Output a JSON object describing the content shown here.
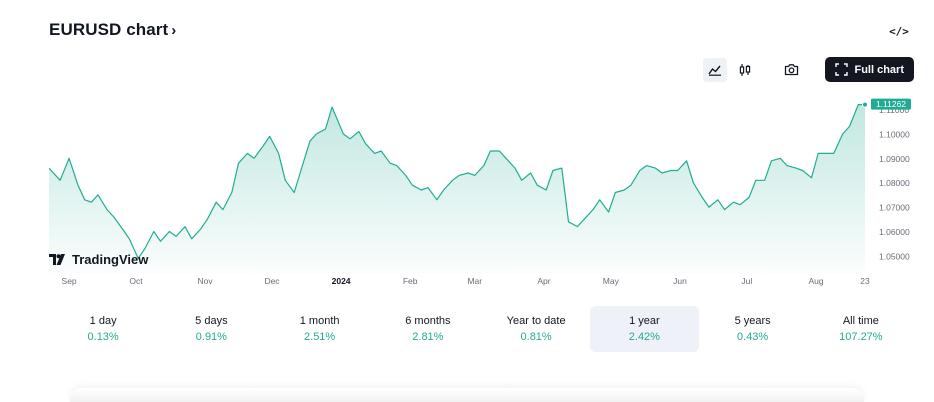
{
  "header": {
    "title": "EURUSD chart",
    "chevron": "›",
    "embed_icon": "</>"
  },
  "toolbar": {
    "icons": [
      "line-chart-icon",
      "candles-icon",
      "camera-icon"
    ],
    "full_chart_label": "Full chart"
  },
  "logo": {
    "text": "TradingView"
  },
  "colors": {
    "line": "#22ab94",
    "fill_top": "#d6efe8",
    "text": "#131722",
    "muted": "#6a6d78",
    "accent": "#22ab94"
  },
  "chart_data": {
    "type": "area",
    "symbol": "EURUSD",
    "last_price_label": "1.11262",
    "ylim": [
      1.043,
      1.118
    ],
    "yticks": [
      "1.11000",
      "1.10000",
      "1.09000",
      "1.08000",
      "1.07000",
      "1.06000",
      "1.05000"
    ],
    "ytick_values": [
      1.11,
      1.1,
      1.09,
      1.08,
      1.07,
      1.06,
      1.05
    ],
    "xlabels": [
      "Sep",
      "Oct",
      "Nov",
      "Dec",
      "2024",
      "Feb",
      "Mar",
      "Apr",
      "May",
      "Jun",
      "Jul",
      "Aug",
      "23"
    ],
    "xlabel_dates": [
      "2023-09-01",
      "2023-10-01",
      "2023-11-01",
      "2023-12-01",
      "2024-01-01",
      "2024-02-01",
      "2024-03-01",
      "2024-04-01",
      "2024-05-01",
      "2024-06-01",
      "2024-07-01",
      "2024-08-01",
      "2024-08-23"
    ],
    "bold_xlabel": "2024",
    "x_range": [
      "2023-08-23",
      "2024-08-23"
    ],
    "series": [
      {
        "x": [
          "2023-08-23",
          "2023-08-28",
          "2023-09-01",
          "2023-09-05",
          "2023-09-08",
          "2023-09-11",
          "2023-09-14",
          "2023-09-18",
          "2023-09-21",
          "2023-09-25",
          "2023-09-28",
          "2023-10-02",
          "2023-10-05",
          "2023-10-09",
          "2023-10-12",
          "2023-10-16",
          "2023-10-19",
          "2023-10-23",
          "2023-10-26",
          "2023-10-30",
          "2023-11-02",
          "2023-11-06",
          "2023-11-09",
          "2023-11-13",
          "2023-11-16",
          "2023-11-20",
          "2023-11-23",
          "2023-11-27",
          "2023-11-30",
          "2023-12-04",
          "2023-12-07",
          "2023-12-11",
          "2023-12-14",
          "2023-12-18",
          "2023-12-21",
          "2023-12-25",
          "2023-12-28",
          "2024-01-02",
          "2024-01-05",
          "2024-01-09",
          "2024-01-12",
          "2024-01-16",
          "2024-01-19",
          "2024-01-23",
          "2024-01-26",
          "2024-01-30",
          "2024-02-02",
          "2024-02-06",
          "2024-02-09",
          "2024-02-13",
          "2024-02-16",
          "2024-02-20",
          "2024-02-23",
          "2024-02-27",
          "2024-03-01",
          "2024-03-05",
          "2024-03-08",
          "2024-03-12",
          "2024-03-15",
          "2024-03-19",
          "2024-03-22",
          "2024-03-26",
          "2024-03-29",
          "2024-04-02",
          "2024-04-05",
          "2024-04-09",
          "2024-04-12",
          "2024-04-16",
          "2024-04-19",
          "2024-04-23",
          "2024-04-26",
          "2024-04-30",
          "2024-05-03",
          "2024-05-07",
          "2024-05-10",
          "2024-05-14",
          "2024-05-17",
          "2024-05-21",
          "2024-05-24",
          "2024-05-28",
          "2024-05-31",
          "2024-06-04",
          "2024-06-07",
          "2024-06-11",
          "2024-06-14",
          "2024-06-18",
          "2024-06-21",
          "2024-06-25",
          "2024-06-28",
          "2024-07-02",
          "2024-07-05",
          "2024-07-09",
          "2024-07-12",
          "2024-07-16",
          "2024-07-19",
          "2024-07-23",
          "2024-07-26",
          "2024-07-30",
          "2024-08-02",
          "2024-08-06",
          "2024-08-09",
          "2024-08-13",
          "2024-08-16",
          "2024-08-20",
          "2024-08-23"
        ],
        "y": [
          1.086,
          1.081,
          1.09,
          1.079,
          1.073,
          1.072,
          1.075,
          1.069,
          1.066,
          1.061,
          1.057,
          1.049,
          1.053,
          1.06,
          1.056,
          1.06,
          1.058,
          1.062,
          1.057,
          1.061,
          1.065,
          1.072,
          1.069,
          1.076,
          1.088,
          1.092,
          1.09,
          1.095,
          1.099,
          1.092,
          1.081,
          1.076,
          1.085,
          1.097,
          1.1,
          1.102,
          1.111,
          1.1,
          1.098,
          1.101,
          1.096,
          1.092,
          1.093,
          1.088,
          1.087,
          1.083,
          1.079,
          1.077,
          1.078,
          1.073,
          1.077,
          1.081,
          1.083,
          1.084,
          1.083,
          1.087,
          1.093,
          1.093,
          1.09,
          1.086,
          1.081,
          1.084,
          1.079,
          1.077,
          1.085,
          1.086,
          1.064,
          1.062,
          1.065,
          1.069,
          1.073,
          1.068,
          1.076,
          1.077,
          1.079,
          1.085,
          1.087,
          1.086,
          1.084,
          1.085,
          1.085,
          1.089,
          1.08,
          1.074,
          1.07,
          1.073,
          1.069,
          1.072,
          1.071,
          1.074,
          1.081,
          1.081,
          1.089,
          1.09,
          1.087,
          1.086,
          1.085,
          1.082,
          1.092,
          1.092,
          1.092,
          1.1,
          1.103,
          1.112,
          1.112
        ]
      }
    ]
  },
  "periods": [
    {
      "label": "1 day",
      "value": "0.13%"
    },
    {
      "label": "5 days",
      "value": "0.91%"
    },
    {
      "label": "1 month",
      "value": "2.51%"
    },
    {
      "label": "6 months",
      "value": "2.81%"
    },
    {
      "label": "Year to date",
      "value": "0.81%"
    },
    {
      "label": "1 year",
      "value": "2.42%"
    },
    {
      "label": "5 years",
      "value": "0.43%"
    },
    {
      "label": "All time",
      "value": "107.27%"
    }
  ],
  "selected_period": "1 year"
}
